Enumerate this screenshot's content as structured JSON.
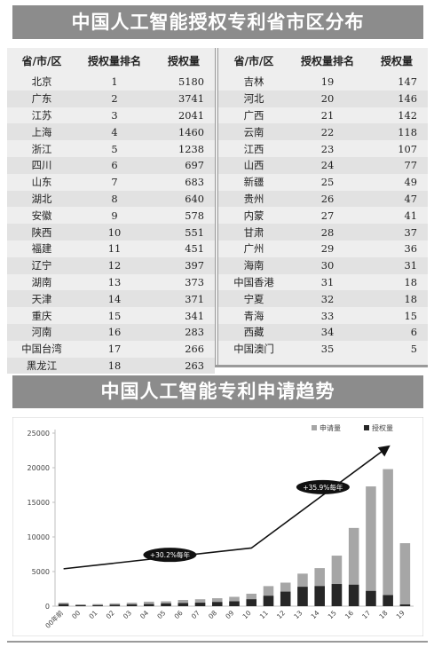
{
  "title_table": "中国人工智能授权专利省市区分布",
  "title_chart": "中国人工智能专利申请趋势",
  "table": {
    "headers": [
      "省/市/区",
      "授权量排名",
      "授权量"
    ],
    "left": [
      [
        "北京",
        "1",
        "5180"
      ],
      [
        "广东",
        "2",
        "3741"
      ],
      [
        "江苏",
        "3",
        "2041"
      ],
      [
        "上海",
        "4",
        "1460"
      ],
      [
        "浙江",
        "5",
        "1238"
      ],
      [
        "四川",
        "6",
        "697"
      ],
      [
        "山东",
        "7",
        "683"
      ],
      [
        "湖北",
        "8",
        "640"
      ],
      [
        "安徽",
        "9",
        "578"
      ],
      [
        "陕西",
        "10",
        "551"
      ],
      [
        "福建",
        "11",
        "451"
      ],
      [
        "辽宁",
        "12",
        "397"
      ],
      [
        "湖南",
        "13",
        "373"
      ],
      [
        "天津",
        "14",
        "371"
      ],
      [
        "重庆",
        "15",
        "341"
      ],
      [
        "河南",
        "16",
        "283"
      ],
      [
        "中国台湾",
        "17",
        "266"
      ],
      [
        "黑龙江",
        "18",
        "263"
      ]
    ],
    "right": [
      [
        "吉林",
        "19",
        "147"
      ],
      [
        "河北",
        "20",
        "146"
      ],
      [
        "广西",
        "21",
        "142"
      ],
      [
        "云南",
        "22",
        "118"
      ],
      [
        "江西",
        "23",
        "107"
      ],
      [
        "山西",
        "24",
        "77"
      ],
      [
        "新疆",
        "25",
        "49"
      ],
      [
        "贵州",
        "26",
        "47"
      ],
      [
        "内蒙",
        "27",
        "41"
      ],
      [
        "甘肃",
        "28",
        "37"
      ],
      [
        "广州",
        "29",
        "36"
      ],
      [
        "海南",
        "30",
        "31"
      ],
      [
        "中国香港",
        "31",
        "18"
      ],
      [
        "宁夏",
        "32",
        "18"
      ],
      [
        "青海",
        "33",
        "15"
      ],
      [
        "西藏",
        "34",
        "6"
      ],
      [
        "中国澳门",
        "35",
        "5"
      ]
    ]
  },
  "chart_data": {
    "type": "bar",
    "categories": [
      "00年前",
      "00",
      "01",
      "02",
      "03",
      "04",
      "05",
      "06",
      "07",
      "08",
      "09",
      "10",
      "11",
      "12",
      "13",
      "14",
      "15",
      "16",
      "17",
      "18",
      "19"
    ],
    "series": [
      {
        "name": "申请量",
        "color": "#a6a6a6",
        "values": [
          500,
          250,
          300,
          400,
          500,
          650,
          700,
          900,
          1000,
          1150,
          1350,
          1800,
          2900,
          3400,
          4700,
          5500,
          7300,
          11300,
          17300,
          19800,
          9100
        ]
      },
      {
        "name": "授权量",
        "color": "#262626",
        "values": [
          300,
          150,
          150,
          200,
          250,
          300,
          400,
          450,
          500,
          600,
          700,
          1000,
          1500,
          2100,
          2800,
          2900,
          3200,
          3100,
          2200,
          1600,
          250
        ]
      }
    ],
    "yticks": [
      0,
      5000,
      10000,
      15000,
      20000,
      25000
    ],
    "ylim": [
      0,
      25000
    ],
    "legend_position": "top-right",
    "annotations": [
      {
        "text": "+30.2%每年"
      },
      {
        "text": "+35.9%每年"
      }
    ],
    "trend_line": [
      {
        "x": "00年前",
        "y": 5400
      },
      {
        "x": "10",
        "y": 8400
      },
      {
        "x": "18",
        "y": 23000
      }
    ]
  }
}
